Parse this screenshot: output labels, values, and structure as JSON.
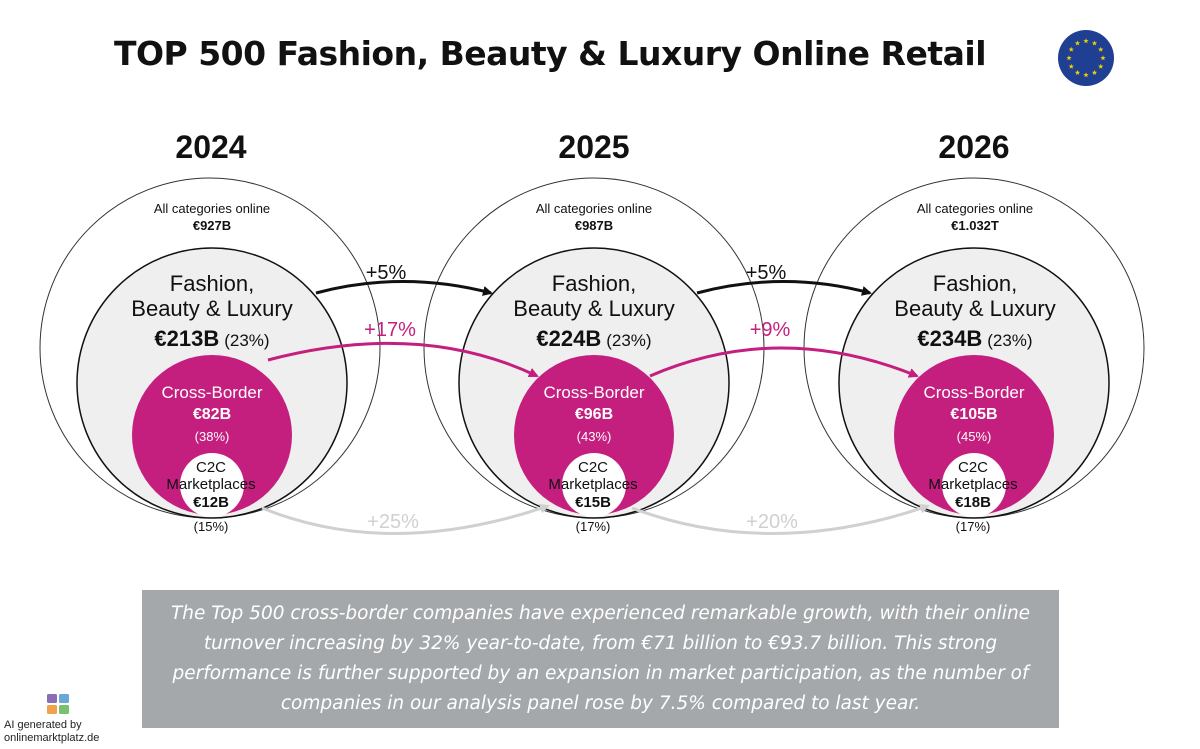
{
  "title": "TOP 500 Fashion, Beauty & Luxury Online Retail",
  "colors": {
    "magenta": "#c41f7e",
    "light_fill": "#efefef",
    "grey_arrow": "#d0d0d0",
    "summary_bg": "#a5a8ab",
    "eu_blue": "#1f3f93",
    "eu_star": "#f5d000"
  },
  "years": [
    {
      "year": "2024",
      "all_label": "All categories online",
      "all_value": "€927B",
      "fbl_line1": "Fashion,",
      "fbl_line2": "Beauty & Luxury",
      "fbl_value": "€213B",
      "fbl_pct": "(23%)",
      "cb_label": "Cross-Border",
      "cb_value": "€82B",
      "cb_pct": "(38%)",
      "c2c_line1": "C2C",
      "c2c_line2": "Marketplaces",
      "c2c_value": "€12B",
      "c2c_pct": "(15%)"
    },
    {
      "year": "2025",
      "all_label": "All categories online",
      "all_value": "€987B",
      "fbl_line1": "Fashion,",
      "fbl_line2": "Beauty & Luxury",
      "fbl_value": "€224B",
      "fbl_pct": "(23%)",
      "cb_label": "Cross-Border",
      "cb_value": "€96B",
      "cb_pct": "(43%)",
      "c2c_line1": "C2C",
      "c2c_line2": "Marketplaces",
      "c2c_value": "€15B",
      "c2c_pct": "(17%)"
    },
    {
      "year": "2026",
      "all_label": "All categories online",
      "all_value": "€1.032T",
      "fbl_line1": "Fashion,",
      "fbl_line2": "Beauty & Luxury",
      "fbl_value": "€234B",
      "fbl_pct": "(23%)",
      "cb_label": "Cross-Border",
      "cb_value": "€105B",
      "cb_pct": "(45%)",
      "c2c_line1": "C2C",
      "c2c_line2": "Marketplaces",
      "c2c_value": "€18B",
      "c2c_pct": "(17%)"
    }
  ],
  "growth": [
    {
      "fbl": "+5%",
      "cross_border": "+17%",
      "c2c": "+25%"
    },
    {
      "fbl": "+5%",
      "cross_border": "+9%",
      "c2c": "+20%"
    }
  ],
  "summary": "The Top 500 cross-border companies have experienced remarkable growth, with their online turnover increasing by 32% year-to-date, from €71 billion to €93.7 billion. This strong performance is further supported by an expansion in market participation, as the number of companies in our analysis panel rose by 7.5% compared to last year.",
  "credit_line1": "AI generated by",
  "credit_line2": "onlinemarktplatz.de"
}
